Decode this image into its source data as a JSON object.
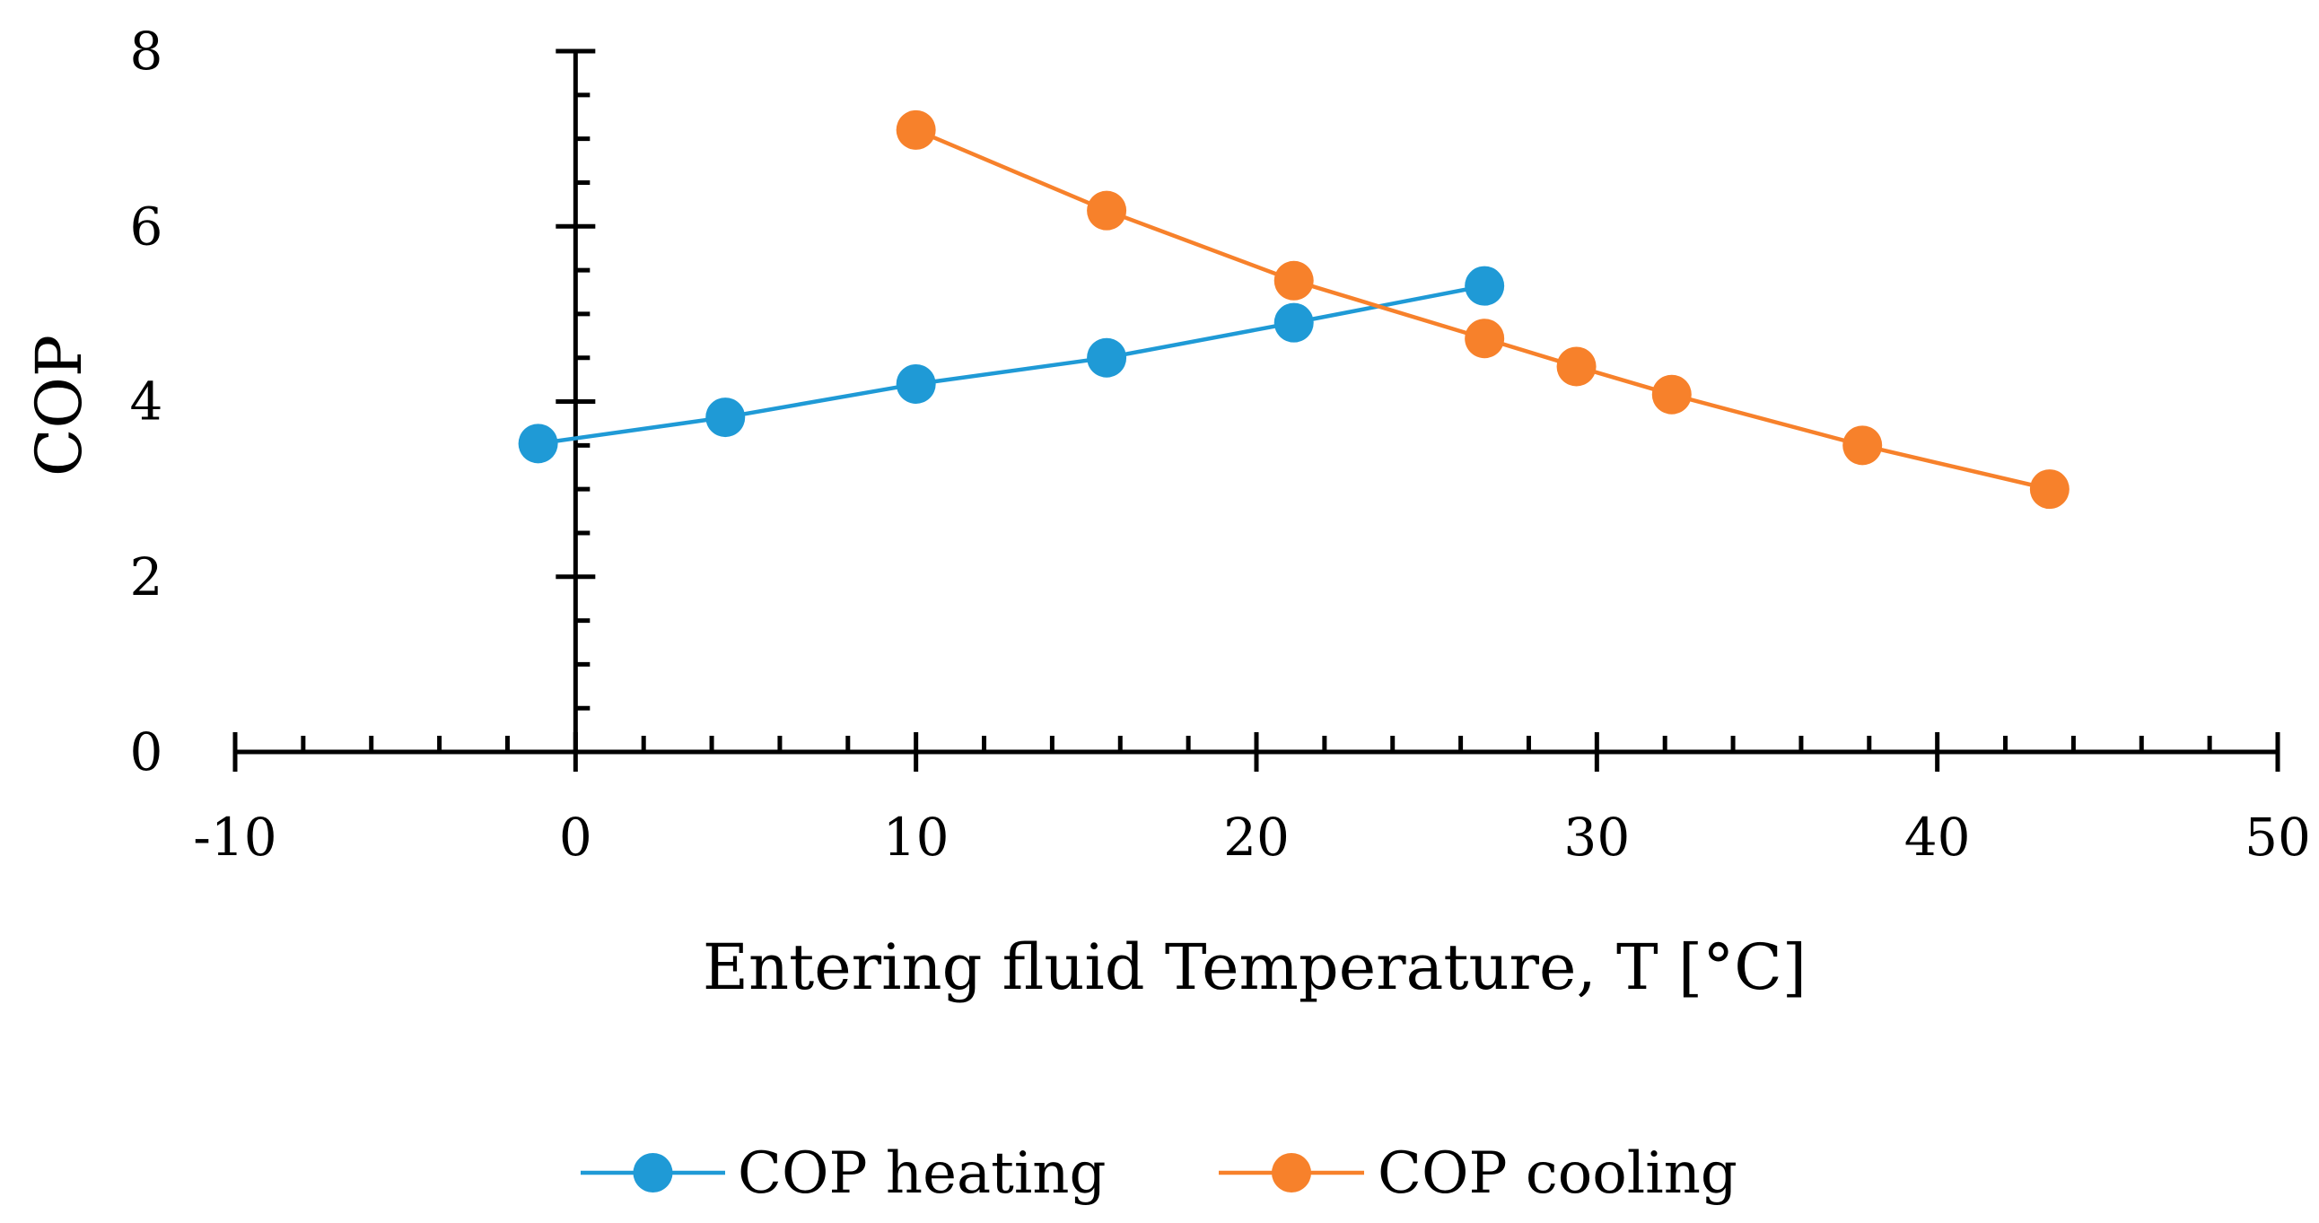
{
  "chart_data": {
    "type": "line",
    "title": "",
    "xlabel": "Entering fluid Temperature, T [°C]",
    "ylabel": "COP",
    "xlim": [
      -10,
      50
    ],
    "ylim": [
      0,
      8
    ],
    "x_ticks": [
      "-10",
      "0",
      "10",
      "20",
      "30",
      "40",
      "50"
    ],
    "y_ticks": [
      "0",
      "2",
      "4",
      "6",
      "8"
    ],
    "grid": false,
    "legend_position": "bottom-center",
    "series": [
      {
        "name": "COP heating",
        "color": "#1f9ad6",
        "x": [
          -1.1,
          4.4,
          10.0,
          15.6,
          21.1,
          26.7
        ],
        "y": [
          3.52,
          3.82,
          4.2,
          4.5,
          4.9,
          5.32
        ]
      },
      {
        "name": "COP cooling",
        "color": "#f7812b",
        "x": [
          10.0,
          15.6,
          21.1,
          26.7,
          29.4,
          32.2,
          37.8,
          43.3
        ],
        "y": [
          7.1,
          6.18,
          5.38,
          4.72,
          4.4,
          4.08,
          3.5,
          3.0
        ]
      }
    ]
  }
}
